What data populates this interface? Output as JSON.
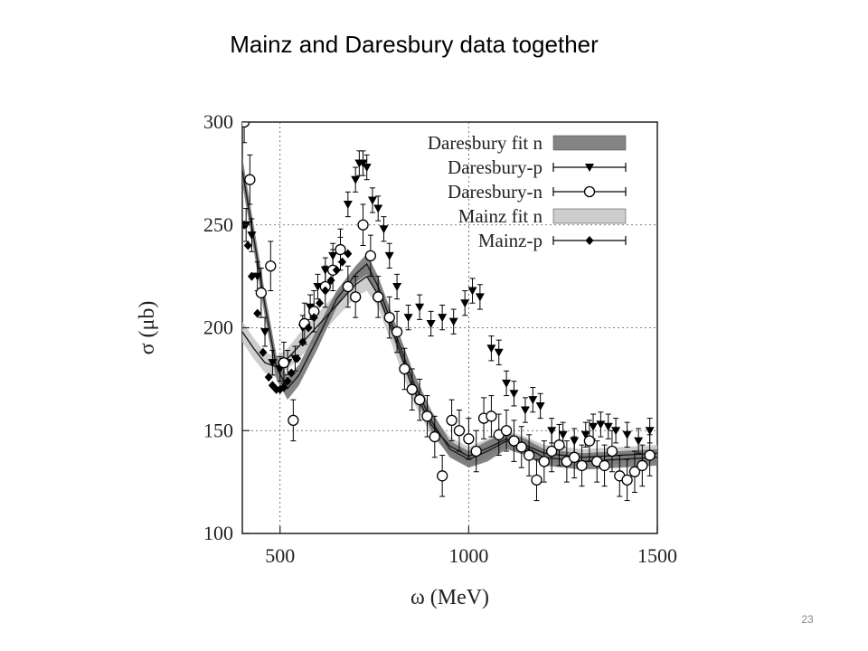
{
  "slide": {
    "title": "Mainz and Daresbury data together",
    "page_number": "23"
  },
  "chart_data": {
    "type": "scatter",
    "title": "",
    "xlabel": "ω (MeV)",
    "ylabel": "σ (μb)",
    "xlim": [
      400,
      1500
    ],
    "ylim": [
      100,
      300
    ],
    "xticks": [
      500,
      1000,
      1500
    ],
    "yticks": [
      100,
      150,
      200,
      250,
      300
    ],
    "grid": "dotted at 500, 1000 (x) and 150, 200, 250 (y)",
    "legend_position": "top-right",
    "colors": {
      "dark_band": "#6e6e6e",
      "light_band": "#c8c8c8",
      "markers": "#000000",
      "curve": "#1a1a1a"
    },
    "series": [
      {
        "name": "Daresbury fit n",
        "kind": "band",
        "x": [
          400,
          430,
          460,
          490,
          520,
          550,
          600,
          650,
          700,
          730,
          760,
          800,
          850,
          900,
          950,
          1000,
          1050,
          1100,
          1150,
          1200,
          1300,
          1400,
          1500
        ],
        "lower": [
          270,
          238,
          205,
          175,
          165,
          172,
          190,
          210,
          222,
          226,
          215,
          195,
          170,
          150,
          137,
          132,
          135,
          141,
          138,
          133,
          131,
          132,
          133
        ],
        "upper": [
          283,
          250,
          217,
          187,
          176,
          182,
          200,
          218,
          230,
          236,
          225,
          205,
          180,
          160,
          145,
          140,
          145,
          149,
          146,
          141,
          139,
          140,
          141
        ]
      },
      {
        "name": "Daresbury-p",
        "kind": "points",
        "x": [
          410,
          425,
          440,
          460,
          480,
          500,
          520,
          540,
          560,
          580,
          600,
          620,
          640,
          660,
          680,
          700,
          710,
          720,
          730,
          745,
          760,
          775,
          790,
          810,
          840,
          870,
          900,
          930,
          960,
          990,
          1010,
          1030,
          1060,
          1080,
          1100,
          1120,
          1150,
          1170,
          1190,
          1220,
          1250,
          1280,
          1310,
          1330,
          1350,
          1370,
          1390,
          1420,
          1450,
          1480
        ],
        "y": [
          250,
          245,
          225,
          198,
          183,
          180,
          183,
          185,
          200,
          210,
          220,
          228,
          235,
          238,
          260,
          272,
          280,
          280,
          278,
          262,
          258,
          248,
          235,
          220,
          205,
          210,
          202,
          205,
          203,
          212,
          218,
          215,
          190,
          188,
          173,
          168,
          160,
          165,
          162,
          150,
          148,
          145,
          148,
          152,
          153,
          152,
          150,
          148,
          145,
          150
        ],
        "yerr": [
          8,
          8,
          7,
          7,
          6,
          6,
          6,
          6,
          6,
          6,
          6,
          6,
          6,
          6,
          6,
          6,
          6,
          6,
          6,
          6,
          6,
          6,
          6,
          6,
          6,
          6,
          6,
          6,
          6,
          6,
          6,
          6,
          6,
          6,
          6,
          6,
          6,
          6,
          6,
          6,
          6,
          6,
          6,
          6,
          6,
          6,
          6,
          6,
          6,
          6
        ]
      },
      {
        "name": "Daresbury-n",
        "kind": "points",
        "x": [
          405,
          420,
          450,
          475,
          510,
          535,
          565,
          590,
          620,
          640,
          660,
          680,
          700,
          720,
          740,
          760,
          790,
          810,
          830,
          850,
          870,
          890,
          910,
          930,
          955,
          975,
          1000,
          1020,
          1040,
          1060,
          1080,
          1100,
          1120,
          1140,
          1160,
          1180,
          1200,
          1220,
          1240,
          1260,
          1280,
          1300,
          1320,
          1340,
          1360,
          1380,
          1400,
          1420,
          1440,
          1460,
          1480
        ],
        "y": [
          300,
          272,
          217,
          230,
          183,
          155,
          202,
          208,
          220,
          228,
          238,
          220,
          215,
          250,
          235,
          215,
          205,
          198,
          180,
          170,
          165,
          157,
          147,
          128,
          155,
          150,
          146,
          140,
          156,
          157,
          148,
          150,
          145,
          142,
          138,
          126,
          135,
          140,
          143,
          135,
          137,
          133,
          145,
          135,
          133,
          140,
          128,
          126,
          130,
          133,
          138
        ],
        "yerr": [
          10,
          12,
          12,
          12,
          10,
          10,
          10,
          10,
          10,
          10,
          10,
          10,
          10,
          10,
          10,
          10,
          10,
          10,
          10,
          10,
          10,
          10,
          10,
          10,
          10,
          10,
          10,
          10,
          10,
          10,
          10,
          10,
          10,
          10,
          10,
          10,
          10,
          10,
          10,
          10,
          10,
          10,
          10,
          10,
          10,
          10,
          10,
          10,
          10,
          10,
          10
        ]
      },
      {
        "name": "Mainz fit n",
        "kind": "band",
        "x": [
          400,
          430,
          460,
          490,
          520,
          550,
          600,
          650,
          700,
          730,
          760,
          800,
          850,
          900,
          950,
          1000,
          1050,
          1100,
          1150,
          1200,
          1300,
          1400,
          1500
        ],
        "lower": [
          193,
          185,
          178,
          176,
          180,
          185,
          195,
          205,
          215,
          218,
          210,
          190,
          165,
          148,
          138,
          133,
          137,
          142,
          139,
          135,
          133,
          134,
          135
        ],
        "upper": [
          203,
          195,
          188,
          186,
          190,
          197,
          207,
          217,
          227,
          232,
          222,
          205,
          178,
          158,
          147,
          142,
          146,
          150,
          147,
          143,
          141,
          142,
          143
        ]
      },
      {
        "name": "Mainz-p",
        "kind": "points",
        "x": [
          405,
          415,
          425,
          440,
          455,
          470,
          480,
          490,
          500,
          510,
          520,
          530,
          545,
          560,
          575,
          590,
          605,
          620,
          635,
          650,
          665,
          680
        ],
        "y": [
          250,
          240,
          225,
          207,
          188,
          176,
          172,
          170,
          170,
          171,
          174,
          178,
          185,
          193,
          200,
          205,
          212,
          218,
          223,
          228,
          232,
          236
        ],
        "yerr": [
          2,
          2,
          2,
          2,
          2,
          2,
          2,
          2,
          2,
          2,
          2,
          2,
          2,
          2,
          2,
          2,
          2,
          2,
          2,
          2,
          2,
          2
        ]
      }
    ]
  }
}
